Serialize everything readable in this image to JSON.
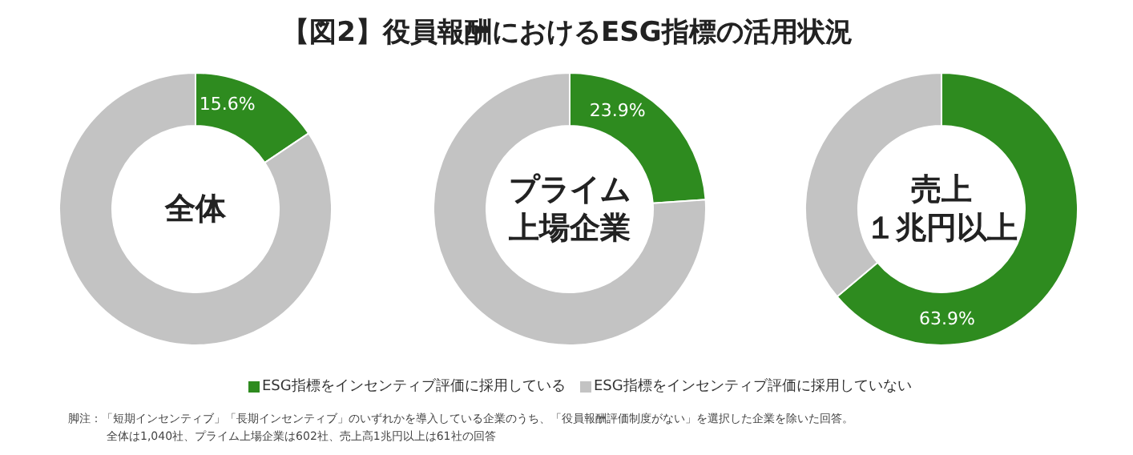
{
  "chart_data": [
    {
      "type": "other",
      "title": "【図2】役員報酬におけるESG指標の活用状況"
    },
    {
      "type": "donut",
      "categories": [
        "ESG指標をインセンティブ評価に採用している",
        "ESG指標をインセンティブ評価に採用していない"
      ],
      "values": [
        15.6,
        84.4
      ],
      "colors": [
        "#2e8b1f",
        "#c3c3c3"
      ],
      "value_labels": [
        "15.6%",
        null
      ],
      "legend": "bottom",
      "annotations": [
        "全体"
      ]
    },
    {
      "type": "donut",
      "categories": [
        null,
        null
      ],
      "values": [
        23.9,
        76.1
      ],
      "colors": [
        "#2e8b1f",
        "#c3c3c3"
      ],
      "value_labels": [
        "23.9%",
        null
      ],
      "annotations": [
        "プライム",
        "上場企業"
      ]
    },
    {
      "type": "donut",
      "categories": [
        null,
        null
      ],
      "values": [
        63.9,
        36.1
      ],
      "colors": [
        "#2e8b1f",
        "#c3c3c3"
      ],
      "value_labels": [
        "63.9%",
        null
      ],
      "annotations": [
        "売上",
        "１兆円以上"
      ]
    },
    {
      "type": "other",
      "annotations": [
        "脚注：「短期インセンティブ」「長期インセンティブ」のいずれかを導入している企業のうち、「役員報酬評価制度がない」を選択した企業を除いた回答。",
        "全体は1,040社、プライム上場企業は602社、売上高1兆円以上は61社の回答"
      ]
    }
  ]
}
